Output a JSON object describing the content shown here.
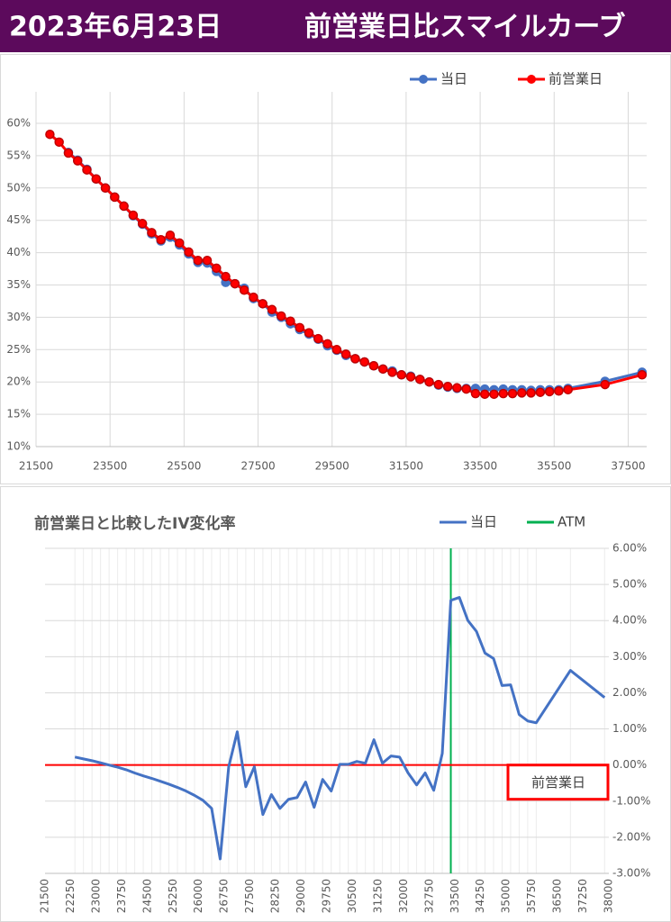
{
  "header": {
    "date": "2023年6月23日",
    "title": "前営業日比スマイルカーブ"
  },
  "chart_data": [
    {
      "type": "line",
      "markers": true,
      "legend": "top-right",
      "grid": true,
      "x": [
        21875,
        22125,
        22375,
        22625,
        22875,
        23125,
        23375,
        23625,
        23875,
        24125,
        24375,
        24625,
        24875,
        25125,
        25375,
        25625,
        25875,
        26125,
        26375,
        26625,
        26875,
        27125,
        27375,
        27625,
        27875,
        28125,
        28375,
        28625,
        28875,
        29125,
        29375,
        29625,
        29875,
        30125,
        30375,
        30625,
        30875,
        31125,
        31375,
        31625,
        31875,
        32125,
        32375,
        32625,
        32875,
        33125,
        33375,
        33625,
        33875,
        34125,
        34375,
        34625,
        34875,
        35125,
        35375,
        35625,
        35875,
        36875,
        37875
      ],
      "series": [
        {
          "name": "当日",
          "color": "#4472c4",
          "values": [
            null,
            null,
            55.5,
            54.3,
            52.9,
            51.4,
            50.0,
            48.6,
            47.2,
            45.7,
            44.4,
            42.9,
            41.8,
            42.4,
            41.2,
            39.8,
            38.5,
            38.4,
            37.1,
            35.4,
            35.2,
            34.5,
            32.9,
            32.1,
            30.8,
            30.0,
            29.0,
            28.1,
            27.4,
            26.6,
            25.6,
            24.9,
            24.1,
            23.6,
            23.1,
            22.5,
            22.0,
            21.7,
            21.1,
            20.9,
            20.4,
            20.0,
            19.5,
            19.2,
            19.0,
            19.0,
            19.0,
            18.9,
            18.8,
            18.9,
            18.8,
            18.8,
            18.7,
            18.8,
            18.8,
            18.8,
            19.0,
            20.1,
            21.5
          ]
        },
        {
          "name": "前営業日",
          "color": "#ff0000",
          "values": [
            58.3,
            57.1,
            55.4,
            54.2,
            52.8,
            51.4,
            50.0,
            48.6,
            47.2,
            45.8,
            44.5,
            43.1,
            42.0,
            42.7,
            41.5,
            40.1,
            38.8,
            38.8,
            37.6,
            36.3,
            35.2,
            34.2,
            33.1,
            32.1,
            31.2,
            30.2,
            29.4,
            28.4,
            27.6,
            26.7,
            25.9,
            25.0,
            24.3,
            23.6,
            23.1,
            22.5,
            22.0,
            21.5,
            21.1,
            20.8,
            20.4,
            20.0,
            19.6,
            19.3,
            19.1,
            18.9,
            18.2,
            18.1,
            18.1,
            18.2,
            18.2,
            18.3,
            18.3,
            18.4,
            18.5,
            18.6,
            18.8,
            19.6,
            21.1
          ]
        }
      ],
      "xlim": [
        21500,
        38000
      ],
      "xticks": [
        21500,
        23500,
        25500,
        27500,
        29500,
        31500,
        33500,
        35500,
        37500
      ],
      "ylim": [
        10,
        60
      ],
      "yticks": [
        {
          "value": 10,
          "label": "10%"
        },
        {
          "value": 15,
          "label": "15%"
        },
        {
          "value": 20,
          "label": "20%"
        },
        {
          "value": 25,
          "label": "25%"
        },
        {
          "value": 30,
          "label": "30%"
        },
        {
          "value": 35,
          "label": "35%"
        },
        {
          "value": 40,
          "label": "40%"
        },
        {
          "value": 45,
          "label": "45%"
        },
        {
          "value": 50,
          "label": "50%"
        },
        {
          "value": 55,
          "label": "55%"
        },
        {
          "value": 60,
          "label": "60%"
        }
      ]
    },
    {
      "type": "line",
      "markers": false,
      "legend": "top-right",
      "grid": true,
      "y_axis_side": "right",
      "xtick_rotation": -90,
      "title": "前営業日と比較したIV変化率",
      "x": [
        22375,
        22625,
        22875,
        23125,
        23375,
        23625,
        23875,
        24125,
        24375,
        24625,
        24875,
        25125,
        25375,
        25625,
        25875,
        26125,
        26375,
        26625,
        26875,
        27125,
        27375,
        27625,
        27875,
        28125,
        28375,
        28625,
        28875,
        29125,
        29375,
        29625,
        29875,
        30125,
        30375,
        30625,
        30875,
        31125,
        31375,
        31625,
        31875,
        32125,
        32375,
        32625,
        32875,
        33125,
        33375,
        33625,
        33875,
        34125,
        34375,
        34625,
        34875,
        35125,
        35375,
        35625,
        35875,
        36875,
        37875
      ],
      "series": [
        {
          "name": "当日",
          "color": "#4472c4",
          "values": [
            0.22,
            0.17,
            0.12,
            0.06,
            0.0,
            -0.06,
            -0.13,
            -0.22,
            -0.3,
            -0.37,
            -0.45,
            -0.53,
            -0.62,
            -0.72,
            -0.84,
            -0.98,
            -1.2,
            -2.6,
            -0.05,
            0.92,
            -0.6,
            -0.05,
            -1.37,
            -0.82,
            -1.2,
            -0.95,
            -0.9,
            -0.47,
            -1.17,
            -0.4,
            -0.72,
            0.02,
            0.02,
            0.1,
            0.05,
            0.7,
            0.05,
            0.25,
            0.22,
            -0.22,
            -0.55,
            -0.22,
            -0.7,
            0.32,
            4.56,
            4.64,
            4.0,
            3.7,
            3.1,
            2.95,
            2.2,
            2.22,
            1.4,
            1.22,
            1.17,
            2.62,
            1.87
          ]
        }
      ],
      "reference_lines": [
        {
          "name": "ATM",
          "color": "#00b050",
          "x": 33375
        },
        {
          "label": "前営業日",
          "color": "#ff0000",
          "y": 0
        }
      ],
      "xlim": [
        21500,
        38000
      ],
      "xticks": [
        21500,
        22250,
        23000,
        23750,
        24500,
        25250,
        26000,
        26750,
        27500,
        28250,
        29000,
        29750,
        30500,
        31250,
        32000,
        32750,
        33500,
        34250,
        35000,
        35750,
        36500,
        37250,
        38000
      ],
      "ylim": [
        -3,
        6
      ],
      "yticks": [
        {
          "value": -3,
          "label": "-3.00%"
        },
        {
          "value": -2,
          "label": "-2.00%"
        },
        {
          "value": -1,
          "label": "-1.00%"
        },
        {
          "value": 0,
          "label": "0.00%"
        },
        {
          "value": 1,
          "label": "1.00%"
        },
        {
          "value": 2,
          "label": "2.00%"
        },
        {
          "value": 3,
          "label": "3.00%"
        },
        {
          "value": 4,
          "label": "4.00%"
        },
        {
          "value": 5,
          "label": "5.00%"
        },
        {
          "value": 6,
          "label": "6.00%"
        }
      ]
    }
  ]
}
